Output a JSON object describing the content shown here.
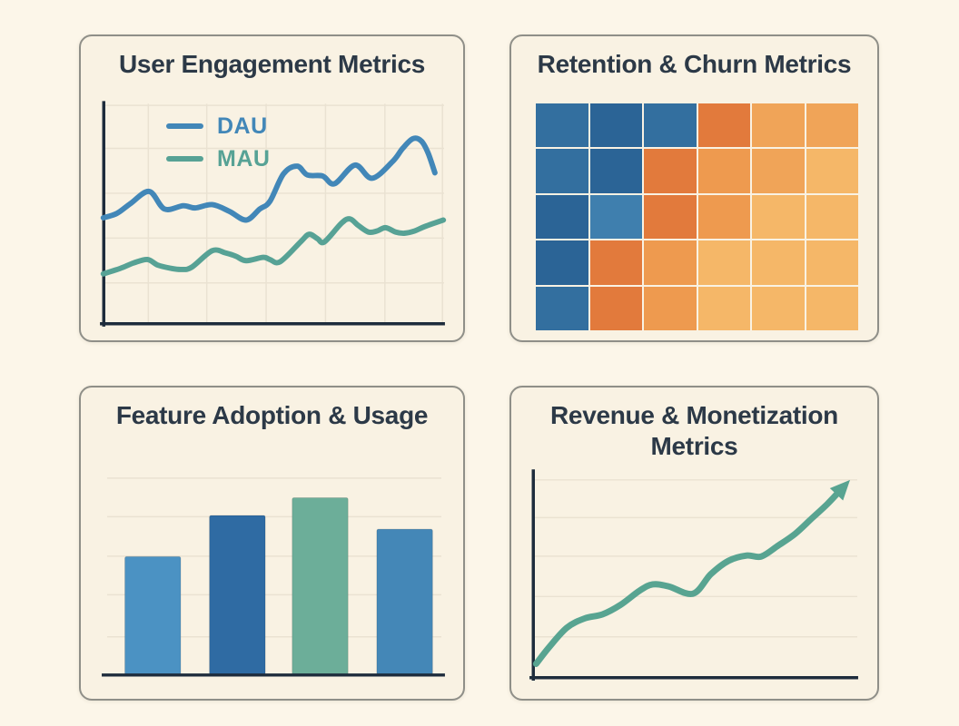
{
  "style": {
    "background": "#fcf6e9",
    "panel_bg": "#f9f2e3",
    "panel_border": "#8f8f88",
    "title_color": "#2c3947",
    "axis_color": "#1e2c3c",
    "grid_color": "#eae2d2"
  },
  "chart_data": [
    {
      "id": "user-engagement",
      "type": "line",
      "title": "User Engagement Metrics",
      "xlabel": "",
      "ylabel": "",
      "x_range": [
        0,
        100
      ],
      "y_range": [
        0,
        100
      ],
      "grid": true,
      "legend_position": "top-left",
      "series": [
        {
          "name": "DAU",
          "color": "#4287b8",
          "points": [
            [
              0,
              48
            ],
            [
              4,
              50
            ],
            [
              8,
              54.5
            ],
            [
              13.5,
              60
            ],
            [
              18,
              52
            ],
            [
              23.5,
              53.5
            ],
            [
              27,
              52.5
            ],
            [
              32,
              54
            ],
            [
              37,
              51
            ],
            [
              42,
              47
            ],
            [
              46,
              52
            ],
            [
              49,
              55.5
            ],
            [
              53,
              68
            ],
            [
              57,
              71.5
            ],
            [
              60,
              67.5
            ],
            [
              64.5,
              67
            ],
            [
              68,
              63.5
            ],
            [
              74,
              72
            ],
            [
              79,
              66
            ],
            [
              85,
              73.5
            ],
            [
              88,
              79.5
            ],
            [
              91,
              84
            ],
            [
              93.5,
              83
            ],
            [
              95.5,
              77.5
            ],
            [
              97.5,
              68.5
            ]
          ]
        },
        {
          "name": "MAU",
          "color": "#57a295",
          "points": [
            [
              0,
              22.5
            ],
            [
              5,
              25
            ],
            [
              9,
              27.5
            ],
            [
              13,
              29
            ],
            [
              16,
              26.5
            ],
            [
              20,
              25
            ],
            [
              23,
              24.5
            ],
            [
              26,
              25.5
            ],
            [
              32,
              33
            ],
            [
              36,
              32
            ],
            [
              39,
              30.5
            ],
            [
              42,
              28.5
            ],
            [
              47,
              30
            ],
            [
              49,
              29
            ],
            [
              52,
              28
            ],
            [
              58,
              37
            ],
            [
              60.5,
              40.5
            ],
            [
              63,
              38.5
            ],
            [
              65,
              37
            ],
            [
              70,
              45.5
            ],
            [
              72.5,
              47.5
            ],
            [
              75,
              44.5
            ],
            [
              78,
              41.5
            ],
            [
              80.5,
              42
            ],
            [
              83,
              43.5
            ],
            [
              86,
              41.5
            ],
            [
              88.5,
              41
            ],
            [
              91.5,
              42
            ],
            [
              94.5,
              44
            ],
            [
              100,
              47
            ]
          ]
        }
      ]
    },
    {
      "id": "retention-churn",
      "type": "heatmap",
      "title": "Retention & Churn Metrics",
      "rows": 5,
      "cols": 6,
      "palette": {
        "blue-dark": "#2b6496",
        "blue-mid": "#336f9f",
        "blue-light": "#3f7fae",
        "orange-dark": "#e27a3c",
        "orange-mid": "#ee9a4f",
        "orange-light": "#f0a458",
        "orange-pale": "#f5b768"
      },
      "cells": [
        [
          "blue-mid",
          "blue-dark",
          "blue-mid",
          "orange-dark",
          "orange-light",
          "orange-light"
        ],
        [
          "blue-mid",
          "blue-dark",
          "orange-dark",
          "orange-mid",
          "orange-light",
          "orange-pale"
        ],
        [
          "blue-dark",
          "blue-light",
          "orange-dark",
          "orange-mid",
          "orange-pale",
          "orange-pale"
        ],
        [
          "blue-dark",
          "orange-dark",
          "orange-mid",
          "orange-pale",
          "orange-pale",
          "orange-pale"
        ],
        [
          "blue-mid",
          "orange-dark",
          "orange-mid",
          "orange-pale",
          "orange-pale",
          "orange-pale"
        ]
      ]
    },
    {
      "id": "feature-adoption",
      "type": "bar",
      "title": "Feature Adoption & Usage",
      "values": [
        60,
        81,
        90,
        74
      ],
      "bar_colors": [
        "#4b92c3",
        "#2f6ba3",
        "#6cae99",
        "#4487b7"
      ],
      "ylim": [
        0,
        100
      ],
      "grid": true
    },
    {
      "id": "revenue",
      "type": "line",
      "title": "Revenue & Monetization Metrics",
      "grid": true,
      "arrow_end": true,
      "series": [
        {
          "color": "#58a491",
          "points": [
            [
              1,
              6.5
            ],
            [
              5,
              14.5
            ],
            [
              10.5,
              24
            ],
            [
              16,
              28.5
            ],
            [
              21.5,
              30.5
            ],
            [
              27,
              35
            ],
            [
              33,
              42
            ],
            [
              37,
              45
            ],
            [
              42,
              44
            ],
            [
              49.5,
              40.5
            ],
            [
              55,
              50
            ],
            [
              60.5,
              56.5
            ],
            [
              66,
              59
            ],
            [
              70.5,
              58.5
            ],
            [
              75.5,
              63.5
            ],
            [
              81,
              69.5
            ],
            [
              86.5,
              77.5
            ],
            [
              91,
              84
            ],
            [
              95.5,
              91.5
            ]
          ]
        }
      ]
    }
  ]
}
